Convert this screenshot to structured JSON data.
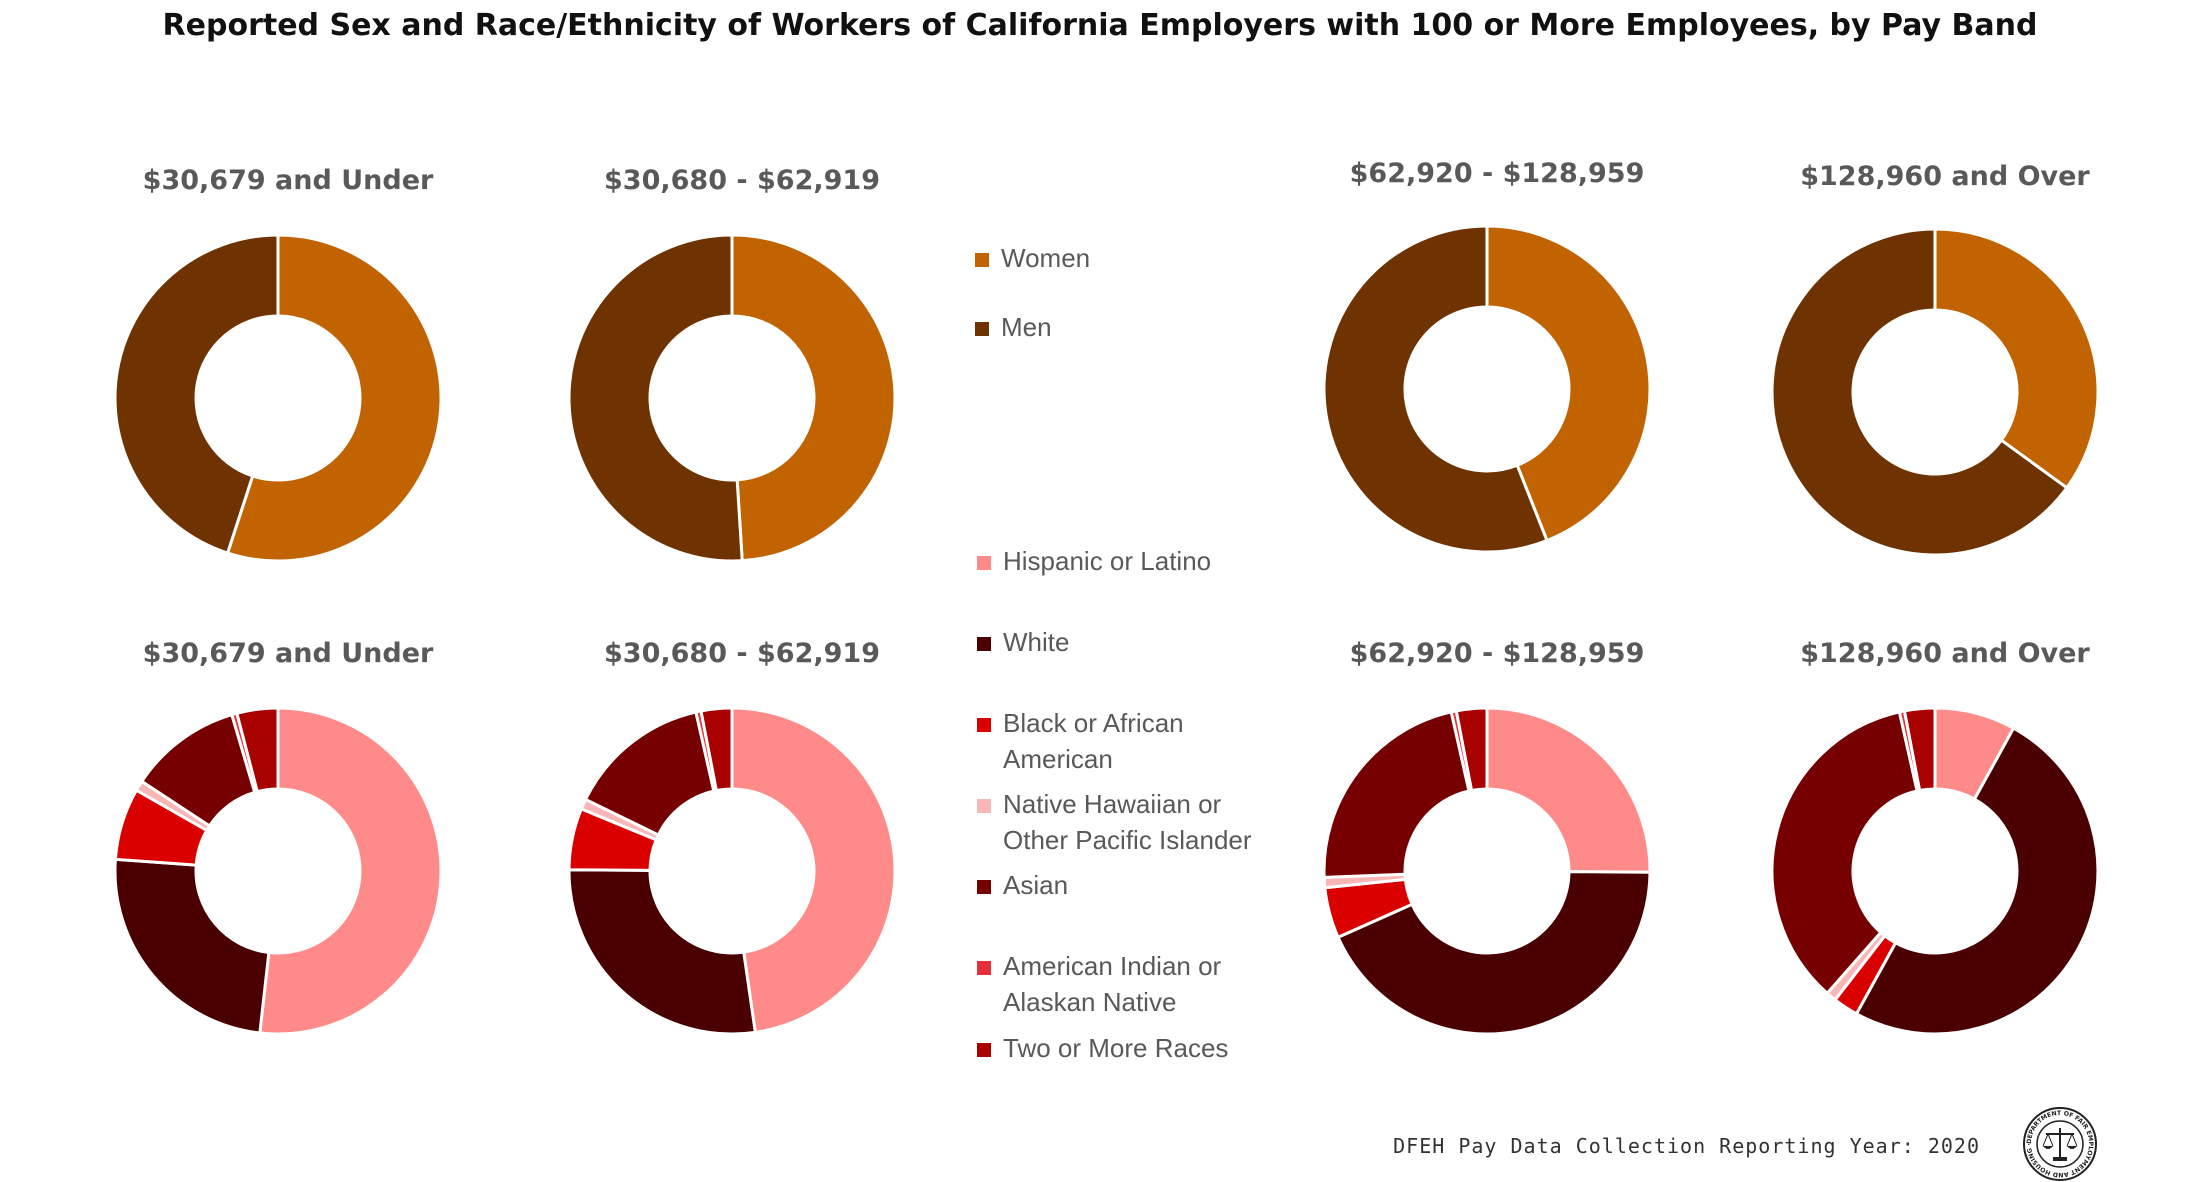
{
  "title": "Reported Sex and Race/Ethnicity of Workers of California Employers with 100 or More Employees, by Pay Band",
  "footer": "DFEH Pay Data Collection Reporting Year: 2020",
  "seal": {
    "icon": "state-seal-icon",
    "text": "DEPARTMENT OF FAIR EMPLOYMENT AND HOUSING · STATE OF CALIFORNIA"
  },
  "legends": {
    "sex": [
      {
        "label": "Women",
        "color": "#C06300"
      },
      {
        "label": "Men",
        "color": "#6E3300"
      }
    ],
    "race": [
      {
        "label": "Hispanic or Latino",
        "color": "#FF8A8A"
      },
      {
        "label": "White",
        "color": "#4A0000"
      },
      {
        "label": "Black or African American",
        "color": "#DA0000"
      },
      {
        "label": "Native Hawaiian or Other Pacific Islander",
        "color": "#F8B6B6"
      },
      {
        "label": "Asian",
        "color": "#760000"
      },
      {
        "label": "American Indian or Alaskan Native",
        "color": "#E8303A"
      },
      {
        "label": "Two or More Races",
        "color": "#A90000"
      }
    ]
  },
  "chart_data": [
    {
      "type": "pie",
      "group": "sex",
      "title": "$30,679 and Under",
      "categories": [
        "Women",
        "Men"
      ],
      "values": [
        55,
        45
      ]
    },
    {
      "type": "pie",
      "group": "sex",
      "title": "$30,680 - $62,919",
      "categories": [
        "Women",
        "Men"
      ],
      "values": [
        49,
        51
      ]
    },
    {
      "type": "pie",
      "group": "sex",
      "title": "$62,920 - $128,959",
      "categories": [
        "Women",
        "Men"
      ],
      "values": [
        44,
        56
      ]
    },
    {
      "type": "pie",
      "group": "sex",
      "title": "$128,960 and Over",
      "categories": [
        "Women",
        "Men"
      ],
      "values": [
        35,
        65
      ]
    },
    {
      "type": "pie",
      "group": "race",
      "title": "$30,679 and Under",
      "categories": [
        "Hispanic or Latino",
        "White",
        "Black or African American",
        "Native Hawaiian or Other Pacific Islander",
        "Asian",
        "American Indian or Alaskan Native",
        "Two or More Races"
      ],
      "values": [
        51,
        24,
        7,
        1,
        11,
        0.5,
        4
      ]
    },
    {
      "type": "pie",
      "group": "race",
      "title": "$30,680 - $62,919",
      "categories": [
        "Hispanic or Latino",
        "White",
        "Black or African American",
        "Native Hawaiian or Other Pacific Islander",
        "Asian",
        "American Indian or Alaskan Native",
        "Two or More Races"
      ],
      "values": [
        47,
        27,
        6,
        1,
        14,
        0.5,
        3
      ]
    },
    {
      "type": "pie",
      "group": "race",
      "title": "$62,920 - $128,959",
      "categories": [
        "Hispanic or Latino",
        "White",
        "Black or African American",
        "Native Hawaiian or Other Pacific Islander",
        "Asian",
        "American Indian or Alaskan Native",
        "Two or More Races"
      ],
      "values": [
        25,
        43,
        5,
        1,
        22,
        0.5,
        3
      ]
    },
    {
      "type": "pie",
      "group": "race",
      "title": "$128,960 and Over",
      "categories": [
        "Hispanic or Latino",
        "White",
        "Black or African American",
        "Native Hawaiian or Other Pacific Islander",
        "Asian",
        "American Indian or Alaskan Native",
        "Two or More Races"
      ],
      "values": [
        8,
        50,
        2.5,
        1,
        35,
        0.5,
        3
      ]
    }
  ]
}
